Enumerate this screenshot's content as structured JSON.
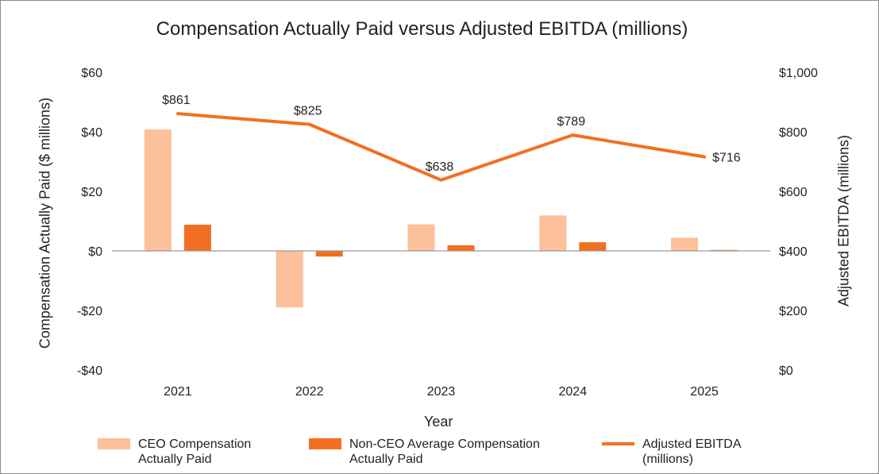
{
  "chart_data": {
    "type": "bar",
    "title": "Compensation Actually Paid versus Adjusted EBITDA (millions)",
    "xlabel": "Year",
    "ylabel_left": "Compensation Actually Paid ($ millions)",
    "ylabel_right": "Adjusted EBITDA (millions)",
    "categories": [
      "2021",
      "2022",
      "2023",
      "2024",
      "2025"
    ],
    "ylim_left": [
      -40,
      60
    ],
    "ylim_right": [
      0,
      1000
    ],
    "left_ticks": [
      60,
      40,
      20,
      0,
      -20,
      -40
    ],
    "left_tick_labels": [
      "$60",
      "$40",
      "$20",
      "$0",
      "-$20",
      "-$40"
    ],
    "right_ticks": [
      1000,
      800,
      600,
      400,
      200,
      0
    ],
    "right_tick_labels": [
      "$1,000",
      "$800",
      "$600",
      "$400",
      "$200",
      "$0"
    ],
    "series": [
      {
        "name": "CEO Compensation Actually Paid",
        "type": "bar",
        "axis": "left",
        "color": "#fcc09a",
        "values": [
          40.8,
          -19.0,
          8.9,
          11.9,
          4.4
        ]
      },
      {
        "name": "Non-CEO Average Compensation Actually Paid",
        "type": "bar",
        "axis": "left",
        "color": "#f26f21",
        "values": [
          8.8,
          -1.9,
          1.9,
          2.9,
          0.3
        ]
      },
      {
        "name": "Adjusted EBITDA (millions)",
        "type": "line",
        "axis": "right",
        "color": "#f26f21",
        "values": [
          861,
          825,
          638,
          789,
          716
        ],
        "labels": [
          "$861",
          "$825",
          "$638",
          "$789",
          "$716"
        ]
      }
    ],
    "legend": {
      "placement": "bottom",
      "items": [
        {
          "line1": "CEO Compensation",
          "line2": "Actually Paid",
          "color": "#fcc09a",
          "kind": "bar"
        },
        {
          "line1": "Non-CEO Average Compensation",
          "line2": "Actually Paid",
          "color": "#f26f21",
          "kind": "bar"
        },
        {
          "line1": "Adjusted EBITDA",
          "line2": "(millions)",
          "color": "#f26f21",
          "kind": "line"
        }
      ]
    },
    "grid": false
  }
}
